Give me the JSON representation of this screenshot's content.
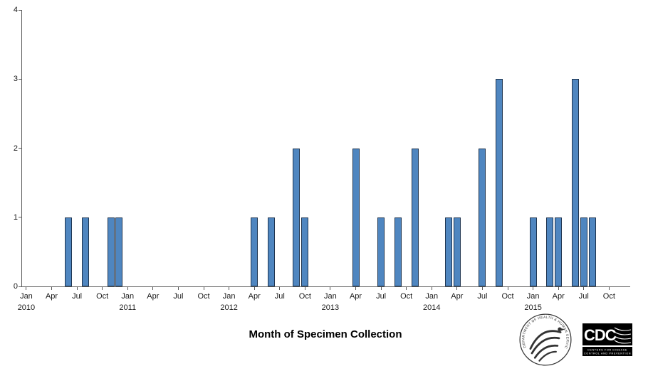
{
  "chart_data": {
    "type": "bar",
    "title": "",
    "xlabel": "Month of Specimen Collection",
    "ylabel": "",
    "ylim": [
      0,
      4
    ],
    "yticks": [
      0,
      1,
      2,
      3,
      4
    ],
    "grid": false,
    "legend": "none",
    "bar_color": "#4F86C0",
    "bar_border": "#1F3550",
    "x_months_total": 72,
    "quarter_labels": [
      "Jan",
      "Apr",
      "Jul",
      "Oct"
    ],
    "years": [
      2010,
      2011,
      2012,
      2013,
      2014,
      2015
    ],
    "points": [
      {
        "month": "2010-06",
        "count": 1
      },
      {
        "month": "2010-08",
        "count": 1
      },
      {
        "month": "2010-11",
        "count": 1
      },
      {
        "month": "2010-12",
        "count": 1
      },
      {
        "month": "2012-04",
        "count": 1
      },
      {
        "month": "2012-06",
        "count": 1
      },
      {
        "month": "2012-09",
        "count": 2
      },
      {
        "month": "2012-10",
        "count": 1
      },
      {
        "month": "2013-04",
        "count": 2
      },
      {
        "month": "2013-07",
        "count": 1
      },
      {
        "month": "2013-09",
        "count": 1
      },
      {
        "month": "2013-11",
        "count": 2
      },
      {
        "month": "2014-03",
        "count": 1
      },
      {
        "month": "2014-04",
        "count": 1
      },
      {
        "month": "2014-07",
        "count": 2
      },
      {
        "month": "2014-09",
        "count": 3
      },
      {
        "month": "2015-01",
        "count": 1
      },
      {
        "month": "2015-03",
        "count": 1
      },
      {
        "month": "2015-04",
        "count": 1
      },
      {
        "month": "2015-06",
        "count": 3
      },
      {
        "month": "2015-07",
        "count": 1
      },
      {
        "month": "2015-08",
        "count": 1
      }
    ]
  },
  "logos": {
    "hhs_ring_text": "DEPARTMENT OF HEALTH & HUMAN SERVICES · USA",
    "cdc_acronym": "CDC",
    "cdc_tagline_line1": "CENTERS FOR DISEASE",
    "cdc_tagline_line2": "CONTROL AND PREVENTION"
  }
}
